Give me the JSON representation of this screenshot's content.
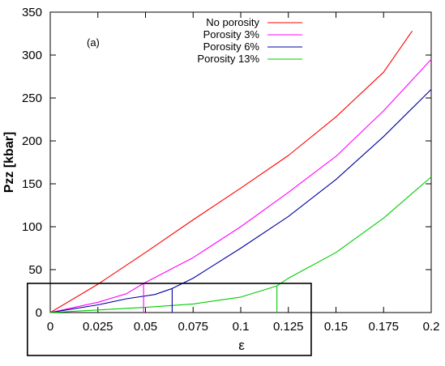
{
  "chart_data": {
    "type": "line",
    "title": "",
    "panel_label": "(a)",
    "xlabel": "ε",
    "ylabel": "Pzz [kbar]",
    "xlim": [
      0,
      0.2
    ],
    "ylim": [
      0,
      350
    ],
    "x_ticks": [
      "0",
      "0.025",
      "0.05",
      "0.075",
      "0.1",
      "0.125",
      "0.15",
      "0.175",
      "0.2"
    ],
    "y_ticks": [
      "0",
      "50",
      "100",
      "150",
      "200",
      "250",
      "300",
      "350"
    ],
    "grid": false,
    "legend_position": "top-center",
    "series": [
      {
        "name": "No porosity",
        "color": "#ff0000",
        "points": [
          [
            0,
            0
          ],
          [
            0.025,
            33
          ],
          [
            0.05,
            70
          ],
          [
            0.075,
            108
          ],
          [
            0.1,
            145
          ],
          [
            0.125,
            183
          ],
          [
            0.15,
            228
          ],
          [
            0.175,
            280
          ],
          [
            0.19,
            328
          ]
        ]
      },
      {
        "name": "Porosity 3%",
        "color": "#ff00ff",
        "points": [
          [
            0,
            0
          ],
          [
            0.025,
            12
          ],
          [
            0.04,
            22
          ],
          [
            0.049,
            34
          ],
          [
            0.075,
            64
          ],
          [
            0.1,
            100
          ],
          [
            0.125,
            140
          ],
          [
            0.15,
            182
          ],
          [
            0.175,
            235
          ],
          [
            0.2,
            295
          ]
        ]
      },
      {
        "name": "Porosity 6%",
        "color": "#0000a0",
        "points": [
          [
            0,
            0
          ],
          [
            0.025,
            9
          ],
          [
            0.04,
            16
          ],
          [
            0.055,
            21
          ],
          [
            0.064,
            28
          ],
          [
            0.075,
            40
          ],
          [
            0.1,
            75
          ],
          [
            0.125,
            112
          ],
          [
            0.15,
            155
          ],
          [
            0.175,
            205
          ],
          [
            0.2,
            260
          ]
        ]
      },
      {
        "name": "Porosity 13%",
        "color": "#00cc00",
        "points": [
          [
            0,
            0
          ],
          [
            0.025,
            3
          ],
          [
            0.05,
            6
          ],
          [
            0.075,
            10
          ],
          [
            0.1,
            18
          ],
          [
            0.119,
            31
          ],
          [
            0.125,
            40
          ],
          [
            0.15,
            70
          ],
          [
            0.175,
            110
          ],
          [
            0.2,
            158
          ]
        ]
      }
    ],
    "vertical_markers": [
      {
        "x": 0.049,
        "y": 34,
        "color": "#ff00ff"
      },
      {
        "x": 0.064,
        "y": 28,
        "color": "#0000a0"
      },
      {
        "x": 0.119,
        "y": 31,
        "color": "#00cc00"
      }
    ],
    "highlight_box": {
      "x_range": [
        -0.012,
        0.137
      ],
      "y_range": [
        -50,
        34
      ]
    }
  }
}
